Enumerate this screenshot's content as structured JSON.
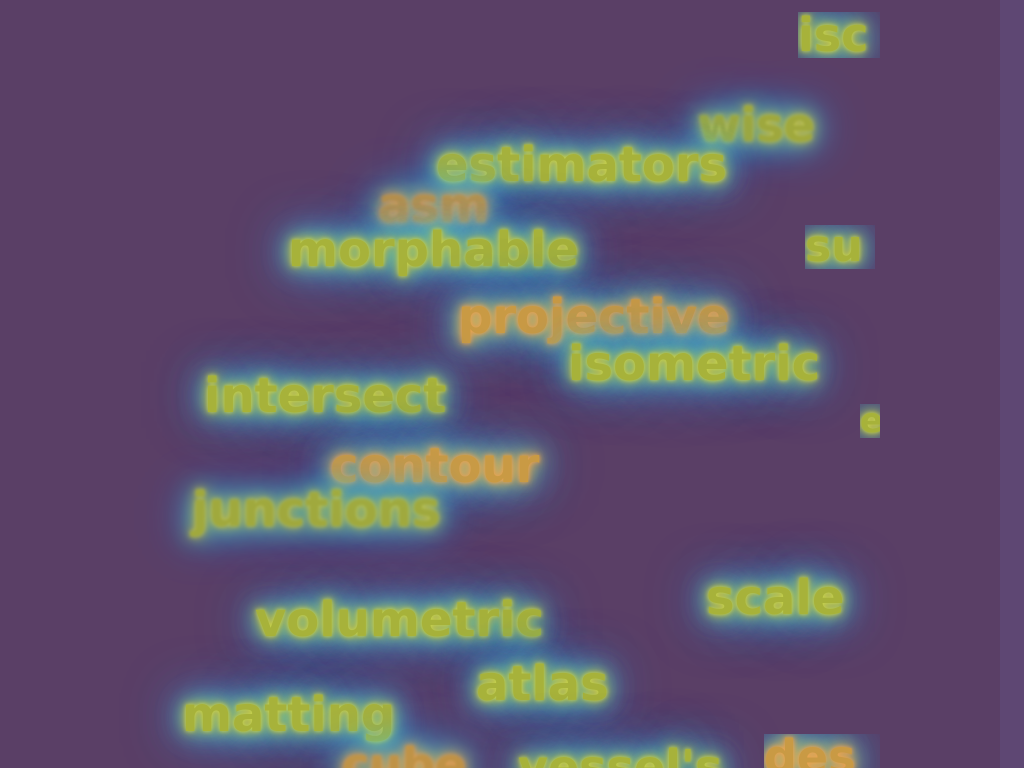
{
  "words": {
    "w0": "isc",
    "w1": "wise",
    "w2": "estimators",
    "w3": "asm",
    "w4": "su",
    "w5": "morphable",
    "w6": "projective",
    "w7": "isometric",
    "w8": "intersect",
    "w9": "e",
    "w10": "contour",
    "w11": "junctions",
    "w12": "scale",
    "w13": "volumetric",
    "w14": "atlas",
    "w15": "matting",
    "w16": "cube",
    "w17": "vessel's",
    "w18": "des"
  },
  "colors": {
    "background": "#5a3f66",
    "text": "#a7b23a",
    "glow_inner": "#d2b03c",
    "glow_mid": "#53e5ff",
    "glow_outer": "#2f7cff"
  }
}
